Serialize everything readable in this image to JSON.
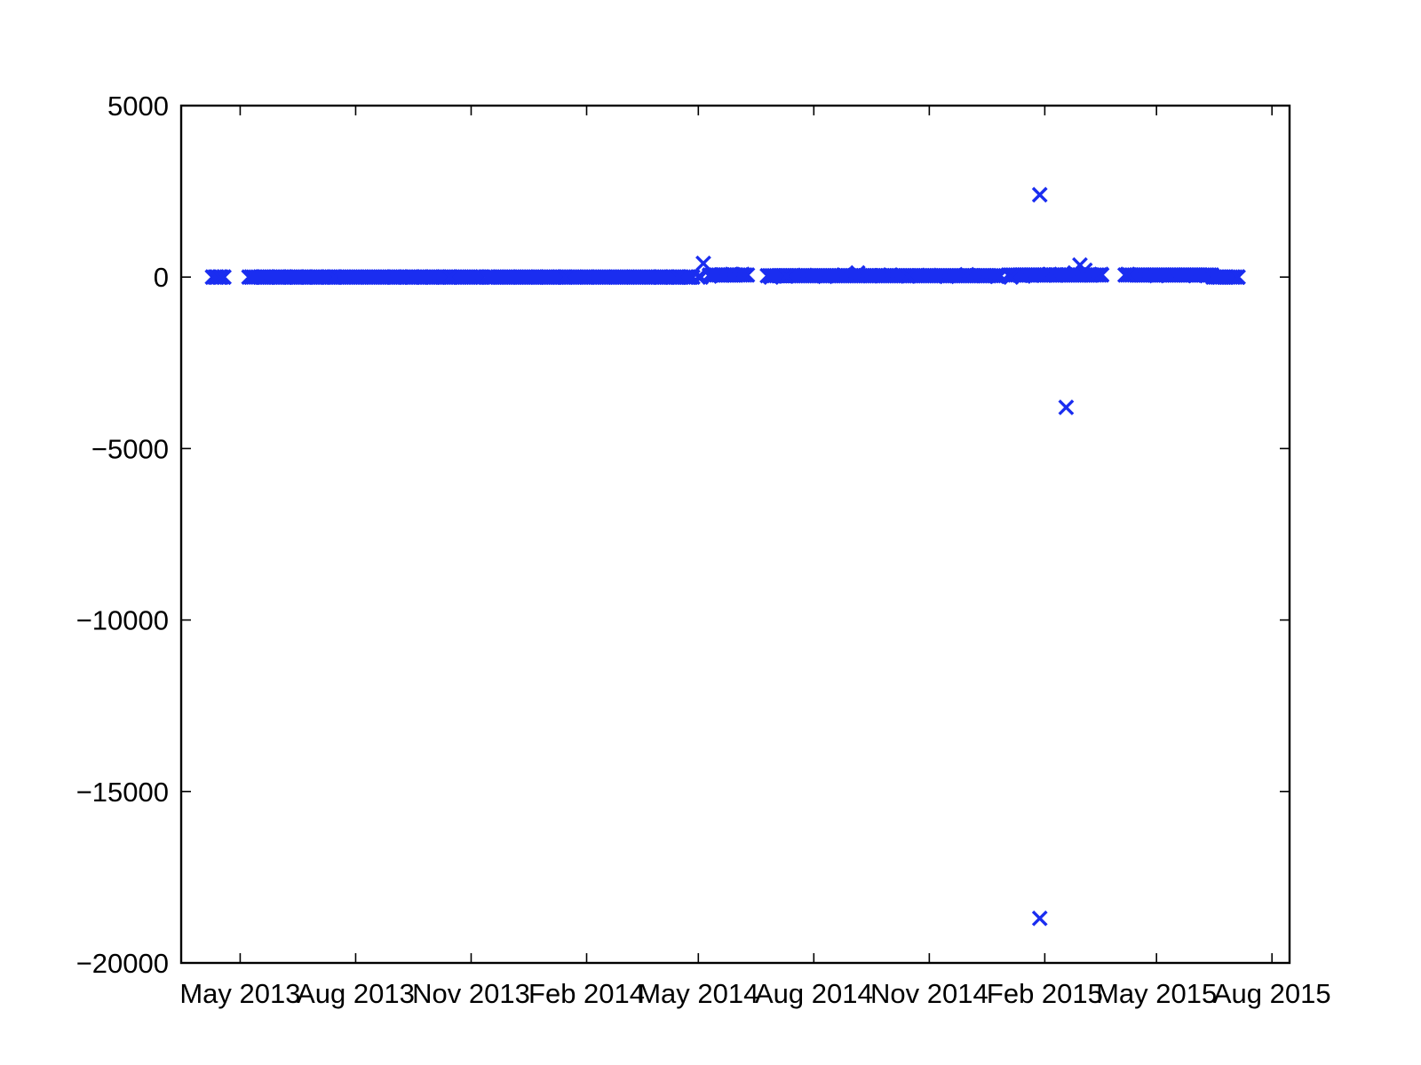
{
  "chart_data": {
    "type": "scatter",
    "title": "",
    "xlabel": "",
    "ylabel": "",
    "marker": "x",
    "color": "#1a2df0",
    "grid": false,
    "xlim": [
      "2013-03-15",
      "2015-08-15"
    ],
    "ylim": [
      -20000,
      5000
    ],
    "xticks": [
      {
        "date": "2013-05-01",
        "label": "May 2013"
      },
      {
        "date": "2013-08-01",
        "label": "Aug 2013"
      },
      {
        "date": "2013-11-01",
        "label": "Nov 2013"
      },
      {
        "date": "2014-02-01",
        "label": "Feb 2014"
      },
      {
        "date": "2014-05-01",
        "label": "May 2014"
      },
      {
        "date": "2014-08-01",
        "label": "Aug 2014"
      },
      {
        "date": "2014-11-01",
        "label": "Nov 2014"
      },
      {
        "date": "2015-02-01",
        "label": "Feb 2015"
      },
      {
        "date": "2015-05-01",
        "label": "May 2015"
      },
      {
        "date": "2015-08-01",
        "label": "Aug 2015"
      }
    ],
    "yticks": [
      {
        "value": 5000,
        "label": "5000"
      },
      {
        "value": 0,
        "label": "0"
      },
      {
        "value": -5000,
        "label": "−5000"
      },
      {
        "value": -10000,
        "label": "−10000"
      },
      {
        "value": -15000,
        "label": "−15000"
      },
      {
        "value": -20000,
        "label": "−20000"
      }
    ],
    "series": [
      {
        "points": [
          [
            "2013-04-09",
            0
          ],
          [
            "2013-04-12",
            0
          ],
          [
            "2013-04-15",
            0
          ],
          [
            "2013-04-18",
            0
          ],
          [
            "2013-05-10",
            0
          ],
          [
            "2013-05-20",
            0
          ],
          [
            "2013-06-01",
            0
          ],
          [
            "2013-06-15",
            0
          ],
          [
            "2013-07-01",
            0
          ],
          [
            "2013-07-15",
            0
          ],
          [
            "2013-08-01",
            0
          ],
          [
            "2013-08-15",
            0
          ],
          [
            "2013-09-01",
            0
          ],
          [
            "2013-09-15",
            0
          ],
          [
            "2013-10-01",
            0
          ],
          [
            "2013-10-15",
            0
          ],
          [
            "2013-11-01",
            0
          ],
          [
            "2013-11-15",
            0
          ],
          [
            "2013-12-01",
            0
          ],
          [
            "2013-12-15",
            0
          ],
          [
            "2014-01-01",
            0
          ],
          [
            "2014-01-15",
            0
          ],
          [
            "2014-02-01",
            0
          ],
          [
            "2014-02-15",
            0
          ],
          [
            "2014-03-01",
            0
          ],
          [
            "2014-03-15",
            0
          ],
          [
            "2014-04-01",
            0
          ],
          [
            "2014-04-15",
            0
          ],
          [
            "2014-04-25",
            0
          ],
          [
            "2014-05-01",
            0
          ],
          [
            "2014-05-03",
            0
          ],
          [
            "2014-05-05",
            400
          ],
          [
            "2014-05-10",
            30
          ],
          [
            "2014-05-20",
            60
          ],
          [
            "2014-05-28",
            80
          ],
          [
            "2014-06-05",
            80
          ],
          [
            "2014-06-28",
            0
          ],
          [
            "2014-07-10",
            30
          ],
          [
            "2014-07-25",
            50
          ],
          [
            "2014-08-10",
            20
          ],
          [
            "2014-08-25",
            60
          ],
          [
            "2014-09-05",
            120
          ],
          [
            "2014-09-15",
            40
          ],
          [
            "2014-10-01",
            60
          ],
          [
            "2014-10-15",
            30
          ],
          [
            "2014-11-01",
            50
          ],
          [
            "2014-11-15",
            20
          ],
          [
            "2014-12-01",
            70
          ],
          [
            "2014-12-15",
            40
          ],
          [
            "2014-12-25",
            20
          ],
          [
            "2015-01-05",
            0
          ],
          [
            "2015-01-15",
            30
          ],
          [
            "2015-01-22",
            50
          ],
          [
            "2015-01-28",
            2400
          ],
          [
            "2015-01-28",
            -18700
          ],
          [
            "2015-02-05",
            80
          ],
          [
            "2015-02-10",
            60
          ],
          [
            "2015-02-18",
            -3800
          ],
          [
            "2015-02-25",
            120
          ],
          [
            "2015-03-01",
            350
          ],
          [
            "2015-03-05",
            200
          ],
          [
            "2015-03-10",
            60
          ],
          [
            "2015-03-18",
            80
          ],
          [
            "2015-04-08",
            80
          ],
          [
            "2015-04-20",
            60
          ],
          [
            "2015-05-01",
            40
          ],
          [
            "2015-05-15",
            60
          ],
          [
            "2015-06-01",
            40
          ],
          [
            "2015-06-10",
            50
          ],
          [
            "2015-06-20",
            0
          ],
          [
            "2015-07-01",
            0
          ],
          [
            "2015-07-05",
            0
          ]
        ],
        "dense_runs": [
          {
            "start": "2013-04-09",
            "end": "2013-04-19",
            "y": 0
          },
          {
            "start": "2013-05-08",
            "end": "2013-11-10",
            "y": 0
          },
          {
            "start": "2013-11-13",
            "end": "2014-04-28",
            "y": 0
          },
          {
            "start": "2014-05-10",
            "end": "2014-06-10",
            "y": 60
          },
          {
            "start": "2014-06-25",
            "end": "2014-12-28",
            "y": 40
          },
          {
            "start": "2015-01-03",
            "end": "2015-03-20",
            "y": 60
          },
          {
            "start": "2015-04-06",
            "end": "2015-06-15",
            "y": 60
          },
          {
            "start": "2015-06-15",
            "end": "2015-07-06",
            "y": 0
          }
        ]
      }
    ]
  }
}
